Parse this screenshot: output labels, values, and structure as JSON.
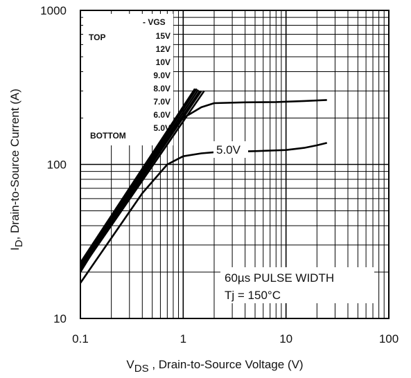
{
  "chart_data": {
    "type": "line",
    "xscale": "log",
    "yscale": "log",
    "xlim": [
      0.1,
      100
    ],
    "ylim": [
      10,
      1000
    ],
    "grid": true,
    "x_ticks": [
      "0.1",
      "1",
      "10",
      "100"
    ],
    "y_ticks": [
      "10",
      "100",
      "1000"
    ],
    "xlabel": {
      "main": "V",
      "sub": "DS",
      "rest": " , Drain-to-Source Voltage (V)"
    },
    "ylabel": {
      "main": "I",
      "sub": "D",
      "rest": ",  Drain-to-Source Current (A)"
    },
    "legend": {
      "header": "VGS",
      "top_label": "TOP",
      "bottom_label": "BOTTOM",
      "entries": [
        "15V",
        "12V",
        "10V",
        "9.0V",
        "8.0V",
        "7.0V",
        "6.0V",
        "5.0V"
      ]
    },
    "annotations": {
      "pulse_width": "60µs PULSE  WIDTH",
      "tj": "Tj = 150°C",
      "curve_label": "5.0V"
    },
    "series": [
      {
        "name": "15V",
        "x": [
          0.1,
          1.3
        ],
        "y": [
          23,
          310
        ]
      },
      {
        "name": "12V",
        "x": [
          0.1,
          1.35
        ],
        "y": [
          22.5,
          310
        ]
      },
      {
        "name": "10V",
        "x": [
          0.1,
          1.4
        ],
        "y": [
          22,
          305
        ]
      },
      {
        "name": "9.0V",
        "x": [
          0.1,
          1.45
        ],
        "y": [
          21.5,
          300
        ]
      },
      {
        "name": "8.0V",
        "x": [
          0.1,
          1.5
        ],
        "y": [
          21,
          300
        ]
      },
      {
        "name": "7.0V",
        "x": [
          0.1,
          1.6
        ],
        "y": [
          20.5,
          300
        ]
      },
      {
        "name": "6.0V",
        "x": [
          0.1,
          0.6,
          1.0,
          1.5,
          2.0,
          4.0,
          8.0,
          15.0,
          25.0
        ],
        "y": [
          20,
          140,
          200,
          235,
          250,
          253,
          254,
          258,
          262
        ]
      },
      {
        "name": "5.0V",
        "x": [
          0.1,
          0.4,
          0.7,
          1.0,
          1.5,
          2.0,
          3.0,
          5.0,
          10.0,
          15.0,
          20.0,
          25.0
        ],
        "y": [
          17,
          65,
          100,
          113,
          118,
          120,
          121,
          122,
          124,
          128,
          133,
          138
        ]
      }
    ]
  }
}
